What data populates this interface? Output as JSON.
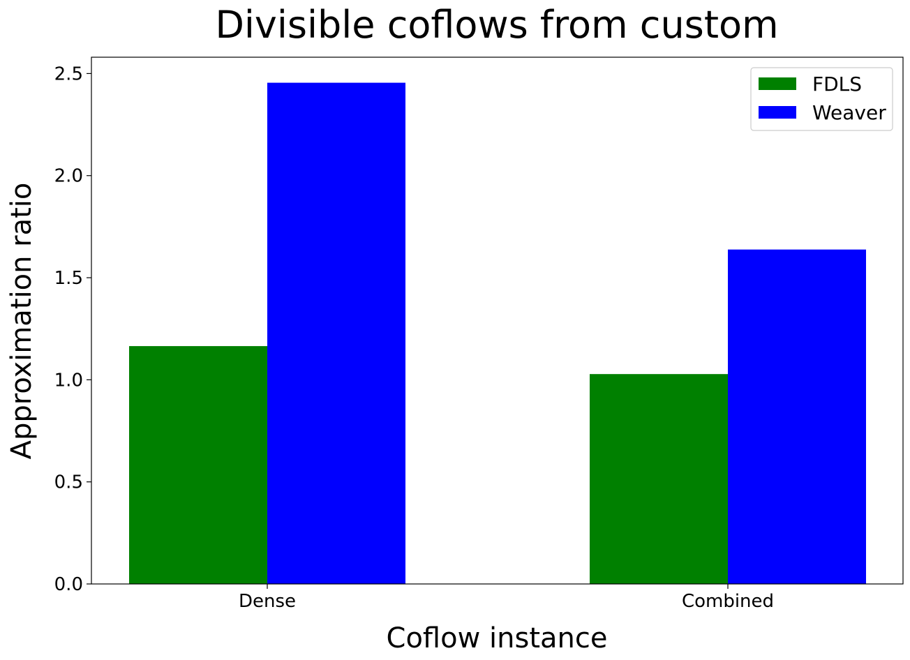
{
  "chart_data": {
    "type": "bar",
    "title": "Divisible coflows from custom",
    "xlabel": "Coflow instance",
    "ylabel": "Approximation ratio",
    "categories": [
      "Dense",
      "Combined"
    ],
    "series": [
      {
        "name": "FDLS",
        "values": [
          1.165,
          1.028
        ],
        "color": "#008000"
      },
      {
        "name": "Weaver",
        "values": [
          2.455,
          1.638
        ],
        "color": "#0000ff"
      }
    ],
    "ylim": [
      0,
      2.58
    ],
    "yticks": [
      0.0,
      0.5,
      1.0,
      1.5,
      2.0,
      2.5
    ],
    "ytick_labels": [
      "0.0",
      "0.5",
      "1.0",
      "1.5",
      "2.0",
      "2.5"
    ],
    "grid": false,
    "legend_position": "top-right"
  }
}
